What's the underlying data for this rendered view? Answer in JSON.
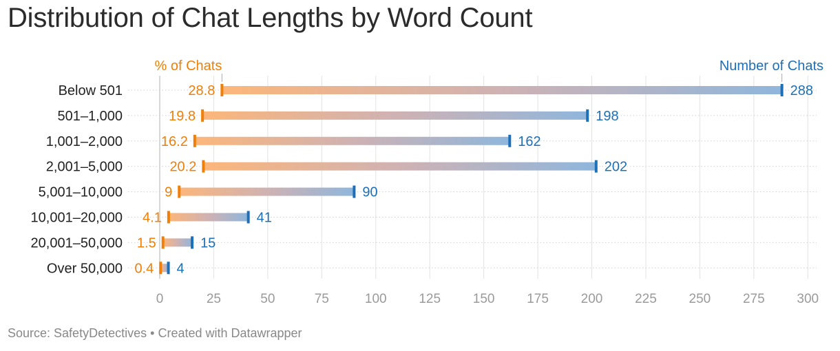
{
  "title": "Distribution of Chat Lengths by Word Count",
  "footer": {
    "source": "Source: SafetyDetectives",
    "separator": "•",
    "credit": "Created with Datawrapper"
  },
  "colors": {
    "orange": "#f07f09",
    "blue": "#1d6fb8",
    "grid": "#e2e2e2",
    "axis_text": "#9a9a9a",
    "label_text": "#222222",
    "footer_text": "#888888"
  },
  "chart_data": {
    "type": "range_dot",
    "title": "Distribution of Chat Lengths by Word Count",
    "categories": [
      "Below 501",
      "501–1,000",
      "1,001–2,000",
      "2,001–5,000",
      "5,001–10,000",
      "10,001–20,000",
      "20,001–50,000",
      "Over 50,000"
    ],
    "series": [
      {
        "name": "% of Chats",
        "color": "#f07f09",
        "values": [
          28.8,
          19.8,
          16.2,
          20.2,
          9,
          4.1,
          1.5,
          0.4
        ]
      },
      {
        "name": "Number of Chats",
        "color": "#1d6fb8",
        "values": [
          288,
          198,
          162,
          202,
          90,
          41,
          15,
          4
        ]
      }
    ],
    "xlim": [
      0,
      300
    ],
    "xticks": [
      0,
      25,
      50,
      75,
      100,
      125,
      150,
      175,
      200,
      225,
      250,
      275,
      300
    ],
    "grid": true,
    "legend": "series names above the first row, at the start and end markers"
  }
}
